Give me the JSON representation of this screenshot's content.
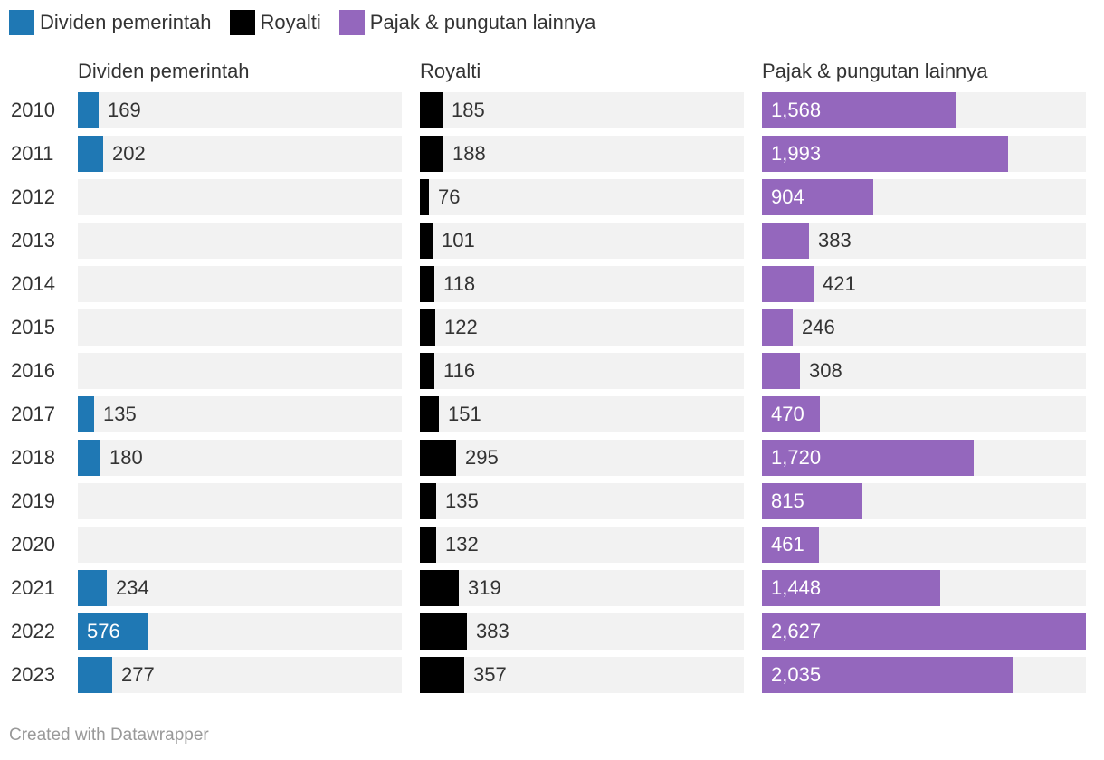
{
  "legend": [
    {
      "label": "Dividen pemerintah",
      "color": "#1f78b4"
    },
    {
      "label": "Royalti",
      "color": "#000000"
    },
    {
      "label": "Pajak & pungutan lainnya",
      "color": "#9467bd"
    }
  ],
  "footer": "Created with Datawrapper",
  "chart_data": {
    "type": "bar",
    "orientation": "horizontal",
    "layout": "split-bars",
    "categories": [
      "2010",
      "2011",
      "2012",
      "2013",
      "2014",
      "2015",
      "2016",
      "2017",
      "2018",
      "2019",
      "2020",
      "2021",
      "2022",
      "2023"
    ],
    "xlim": [
      0,
      2627
    ],
    "series": [
      {
        "name": "Dividen pemerintah",
        "color": "#1f78b4",
        "labels_inside_bar": false,
        "values": [
          169,
          202,
          null,
          null,
          null,
          null,
          null,
          135,
          180,
          null,
          null,
          234,
          576,
          277
        ],
        "value_labels": [
          "169",
          "202",
          "",
          "",
          "",
          "",
          "",
          "135",
          "180",
          "",
          "",
          "234",
          "576",
          "277"
        ]
      },
      {
        "name": "Royalti",
        "color": "#000000",
        "labels_inside_bar": false,
        "values": [
          185,
          188,
          76,
          101,
          118,
          122,
          116,
          151,
          295,
          135,
          132,
          319,
          383,
          357
        ],
        "value_labels": [
          "185",
          "188",
          "76",
          "101",
          "118",
          "122",
          "116",
          "151",
          "295",
          "135",
          "132",
          "319",
          "383",
          "357"
        ]
      },
      {
        "name": "Pajak & pungutan lainnya",
        "color": "#9467bd",
        "labels_inside_bar": true,
        "values": [
          1568,
          1993,
          904,
          383,
          421,
          246,
          308,
          470,
          1720,
          815,
          461,
          1448,
          2627,
          2035
        ],
        "value_labels": [
          "1,568",
          "1,993",
          "904",
          "383",
          "421",
          "246",
          "308",
          "470",
          "1,720",
          "815",
          "461",
          "1,448",
          "2,627",
          "2,035"
        ]
      }
    ]
  }
}
